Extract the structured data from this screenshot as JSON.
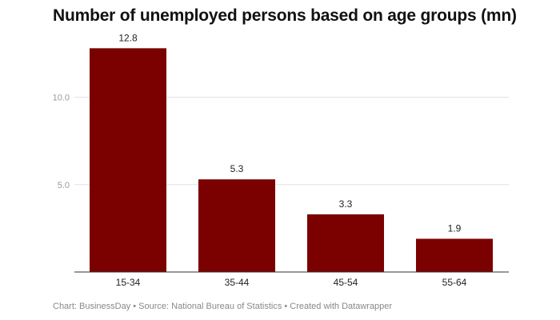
{
  "title": "Number of unemployed persons based on age groups (mn)",
  "footer": "Chart: BusinessDay • Source: National Bureau of Statistics • Created with Datawrapper",
  "chart_data": {
    "type": "bar",
    "title": "Number of unemployed persons based on age groups (mn)",
    "categories": [
      "15-34",
      "35-44",
      "45-54",
      "55-64"
    ],
    "values": [
      12.8,
      5.3,
      3.3,
      1.9
    ],
    "value_labels": [
      "12.8",
      "5.3",
      "3.3",
      "1.9"
    ],
    "y_ticks": [
      5.0,
      10.0
    ],
    "y_tick_labels": [
      "5.0",
      "10.0"
    ],
    "ylim": [
      0,
      13.0
    ],
    "xlabel": "",
    "ylabel": "",
    "grid": true,
    "bar_color": "#7b0000",
    "grid_color": "#e2e2e2",
    "tick_label_color": "#999999"
  }
}
